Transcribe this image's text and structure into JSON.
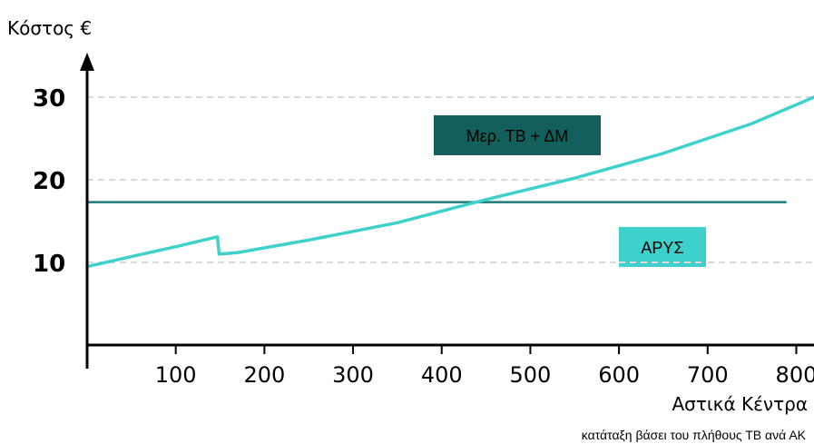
{
  "chart_data": {
    "type": "line",
    "ylabel": "Κόστος €",
    "xlabel": "Αστικά Κέντρα",
    "footnote": "κατάταξη βάσει του πλήθους ΤΒ ανά ΑΚ",
    "xlim": [
      0,
      820
    ],
    "ylim": [
      0,
      33
    ],
    "xticks": [
      100,
      200,
      300,
      400,
      500,
      600,
      700,
      800
    ],
    "yticks": [
      10,
      20,
      30
    ],
    "grid": "horizontal-dashed",
    "series": [
      {
        "name": "Μερ. ΤΒ + ΔΜ",
        "color": "#1f7a76",
        "label_bg": "#135f5b",
        "x": [
          0,
          788
        ],
        "y": [
          17.3,
          17.3
        ]
      },
      {
        "name": "ΑΡΥΣ",
        "color": "#3ed1cc",
        "label_bg": "#3ed1cc",
        "x": [
          0,
          50,
          100,
          147,
          149,
          170,
          250,
          350,
          450,
          550,
          650,
          750,
          820
        ],
        "y": [
          9.5,
          10.7,
          11.9,
          13.1,
          11.0,
          11.2,
          12.7,
          14.8,
          17.6,
          20.2,
          23.2,
          26.8,
          30.0
        ]
      }
    ]
  }
}
